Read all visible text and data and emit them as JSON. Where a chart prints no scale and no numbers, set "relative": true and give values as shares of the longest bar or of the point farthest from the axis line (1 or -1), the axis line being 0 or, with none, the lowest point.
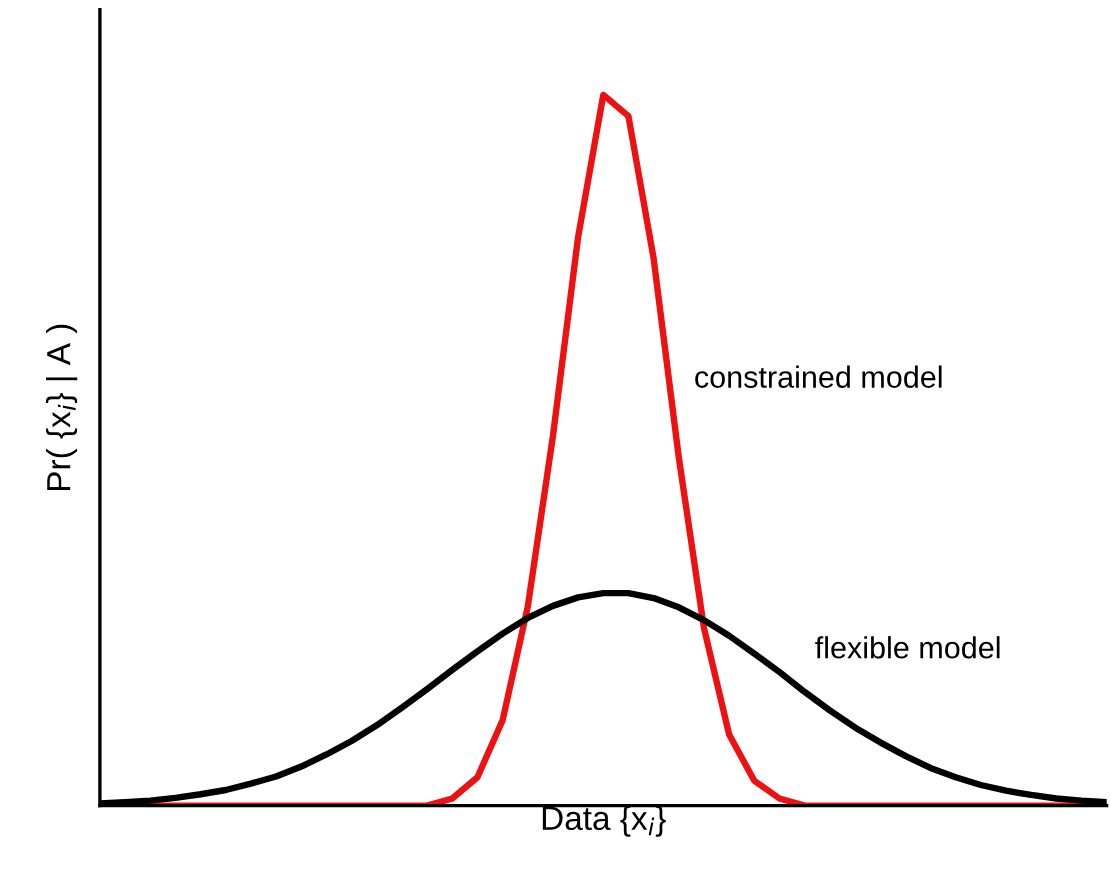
{
  "chart_data": {
    "type": "line",
    "relative": true,
    "xlabel": "Data {x$_{i}$}",
    "ylabel": "Pr( {x$_{i}$} | A )",
    "categories": [
      null,
      null,
      null,
      null,
      null,
      null,
      null,
      null,
      null,
      null,
      null,
      null,
      null,
      null,
      null,
      null,
      null,
      null,
      null,
      null,
      null,
      null,
      null,
      null,
      null,
      null,
      null,
      null,
      null,
      null,
      null,
      null,
      null,
      null,
      null,
      null,
      null,
      null,
      null,
      null,
      null
    ],
    "grid": false,
    "legend": false,
    "marker": "none",
    "line_style": "solid",
    "tick_labels": false,
    "series": [
      {
        "name": "constrained model",
        "color": "#ee1111",
        "values": [
          0,
          0,
          0,
          0,
          0,
          0,
          0,
          0,
          0,
          0,
          0,
          0,
          0,
          0,
          0.01,
          0.04,
          0.12,
          0.28,
          0.52,
          0.8,
          1.0,
          0.97,
          0.77,
          0.49,
          0.25,
          0.1,
          0.035,
          0.01,
          0,
          0,
          0,
          0,
          0,
          0,
          0,
          0,
          0,
          0,
          0,
          0,
          0
        ]
      },
      {
        "name": "flexible model",
        "color": "#000000",
        "values": [
          0.003,
          0.005,
          0.007,
          0.011,
          0.016,
          0.022,
          0.031,
          0.041,
          0.055,
          0.072,
          0.091,
          0.113,
          0.138,
          0.164,
          0.191,
          0.217,
          0.242,
          0.264,
          0.281,
          0.293,
          0.299,
          0.299,
          0.292,
          0.279,
          0.261,
          0.239,
          0.214,
          0.188,
          0.16,
          0.134,
          0.11,
          0.089,
          0.07,
          0.053,
          0.04,
          0.029,
          0.021,
          0.015,
          0.01,
          0.007,
          0.005
        ]
      }
    ]
  }
}
